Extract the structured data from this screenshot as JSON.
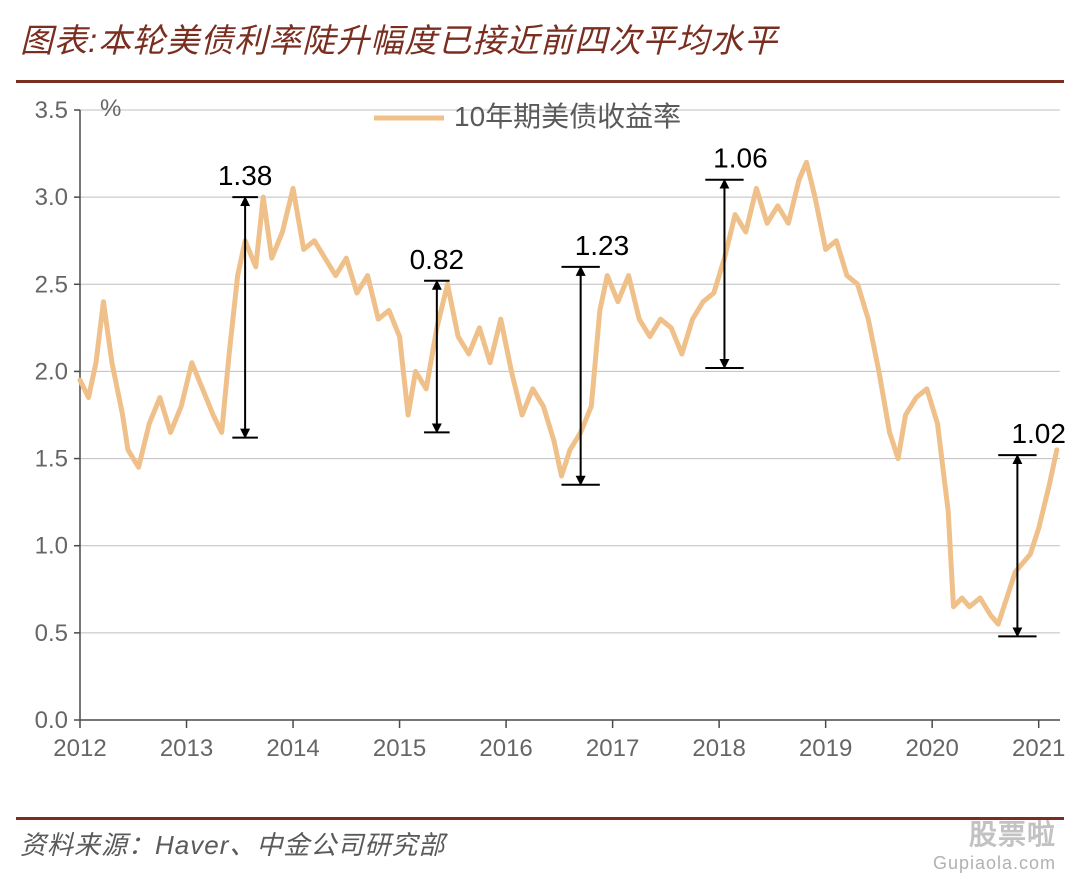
{
  "title": "图表:本轮美债利率陡升幅度已接近前四次平均水平",
  "source": "资料来源：Haver、中金公司研究部",
  "watermark": {
    "line1": "股票啦",
    "line2": "Gupiaola.com"
  },
  "chart": {
    "type": "line",
    "legend_label": "10年期美债收益率",
    "y_unit": "%",
    "bg_color": "#ffffff",
    "grid_color": "#bfbfbf",
    "axis_color": "#4a4a4a",
    "axis_text_color": "#666666",
    "line_color": "#efc08a",
    "line_width": 5,
    "tick_font_size": 24,
    "legend_font_size": 28,
    "annotation_font_size": 28,
    "xlim": [
      2012,
      2021.2
    ],
    "ylim": [
      0,
      3.5
    ],
    "ytick_step": 0.5,
    "xticks": [
      2012,
      2013,
      2014,
      2015,
      2016,
      2017,
      2018,
      2019,
      2020,
      2021
    ],
    "series": [
      {
        "x": 2012.0,
        "y": 1.95
      },
      {
        "x": 2012.08,
        "y": 1.85
      },
      {
        "x": 2012.15,
        "y": 2.05
      },
      {
        "x": 2012.22,
        "y": 2.4
      },
      {
        "x": 2012.3,
        "y": 2.05
      },
      {
        "x": 2012.4,
        "y": 1.75
      },
      {
        "x": 2012.45,
        "y": 1.55
      },
      {
        "x": 2012.55,
        "y": 1.45
      },
      {
        "x": 2012.65,
        "y": 1.7
      },
      {
        "x": 2012.75,
        "y": 1.85
      },
      {
        "x": 2012.85,
        "y": 1.65
      },
      {
        "x": 2012.95,
        "y": 1.8
      },
      {
        "x": 2013.05,
        "y": 2.05
      },
      {
        "x": 2013.15,
        "y": 1.9
      },
      {
        "x": 2013.25,
        "y": 1.75
      },
      {
        "x": 2013.33,
        "y": 1.65
      },
      {
        "x": 2013.4,
        "y": 2.1
      },
      {
        "x": 2013.48,
        "y": 2.55
      },
      {
        "x": 2013.55,
        "y": 2.75
      },
      {
        "x": 2013.65,
        "y": 2.6
      },
      {
        "x": 2013.72,
        "y": 3.0
      },
      {
        "x": 2013.8,
        "y": 2.65
      },
      {
        "x": 2013.9,
        "y": 2.8
      },
      {
        "x": 2014.0,
        "y": 3.05
      },
      {
        "x": 2014.1,
        "y": 2.7
      },
      {
        "x": 2014.2,
        "y": 2.75
      },
      {
        "x": 2014.3,
        "y": 2.65
      },
      {
        "x": 2014.4,
        "y": 2.55
      },
      {
        "x": 2014.5,
        "y": 2.65
      },
      {
        "x": 2014.6,
        "y": 2.45
      },
      {
        "x": 2014.7,
        "y": 2.55
      },
      {
        "x": 2014.8,
        "y": 2.3
      },
      {
        "x": 2014.9,
        "y": 2.35
      },
      {
        "x": 2015.0,
        "y": 2.2
      },
      {
        "x": 2015.08,
        "y": 1.75
      },
      {
        "x": 2015.15,
        "y": 2.0
      },
      {
        "x": 2015.25,
        "y": 1.9
      },
      {
        "x": 2015.35,
        "y": 2.25
      },
      {
        "x": 2015.45,
        "y": 2.5
      },
      {
        "x": 2015.55,
        "y": 2.2
      },
      {
        "x": 2015.65,
        "y": 2.1
      },
      {
        "x": 2015.75,
        "y": 2.25
      },
      {
        "x": 2015.85,
        "y": 2.05
      },
      {
        "x": 2015.95,
        "y": 2.3
      },
      {
        "x": 2016.05,
        "y": 2.0
      },
      {
        "x": 2016.15,
        "y": 1.75
      },
      {
        "x": 2016.25,
        "y": 1.9
      },
      {
        "x": 2016.35,
        "y": 1.8
      },
      {
        "x": 2016.45,
        "y": 1.6
      },
      {
        "x": 2016.52,
        "y": 1.4
      },
      {
        "x": 2016.6,
        "y": 1.55
      },
      {
        "x": 2016.7,
        "y": 1.65
      },
      {
        "x": 2016.8,
        "y": 1.8
      },
      {
        "x": 2016.88,
        "y": 2.35
      },
      {
        "x": 2016.95,
        "y": 2.55
      },
      {
        "x": 2017.05,
        "y": 2.4
      },
      {
        "x": 2017.15,
        "y": 2.55
      },
      {
        "x": 2017.25,
        "y": 2.3
      },
      {
        "x": 2017.35,
        "y": 2.2
      },
      {
        "x": 2017.45,
        "y": 2.3
      },
      {
        "x": 2017.55,
        "y": 2.25
      },
      {
        "x": 2017.65,
        "y": 2.1
      },
      {
        "x": 2017.75,
        "y": 2.3
      },
      {
        "x": 2017.85,
        "y": 2.4
      },
      {
        "x": 2017.95,
        "y": 2.45
      },
      {
        "x": 2018.05,
        "y": 2.65
      },
      {
        "x": 2018.15,
        "y": 2.9
      },
      {
        "x": 2018.25,
        "y": 2.8
      },
      {
        "x": 2018.35,
        "y": 3.05
      },
      {
        "x": 2018.45,
        "y": 2.85
      },
      {
        "x": 2018.55,
        "y": 2.95
      },
      {
        "x": 2018.65,
        "y": 2.85
      },
      {
        "x": 2018.75,
        "y": 3.1
      },
      {
        "x": 2018.82,
        "y": 3.2
      },
      {
        "x": 2018.9,
        "y": 3.0
      },
      {
        "x": 2019.0,
        "y": 2.7
      },
      {
        "x": 2019.1,
        "y": 2.75
      },
      {
        "x": 2019.2,
        "y": 2.55
      },
      {
        "x": 2019.3,
        "y": 2.5
      },
      {
        "x": 2019.4,
        "y": 2.3
      },
      {
        "x": 2019.5,
        "y": 2.0
      },
      {
        "x": 2019.6,
        "y": 1.65
      },
      {
        "x": 2019.68,
        "y": 1.5
      },
      {
        "x": 2019.75,
        "y": 1.75
      },
      {
        "x": 2019.85,
        "y": 1.85
      },
      {
        "x": 2019.95,
        "y": 1.9
      },
      {
        "x": 2020.05,
        "y": 1.7
      },
      {
        "x": 2020.15,
        "y": 1.2
      },
      {
        "x": 2020.2,
        "y": 0.65
      },
      {
        "x": 2020.28,
        "y": 0.7
      },
      {
        "x": 2020.35,
        "y": 0.65
      },
      {
        "x": 2020.45,
        "y": 0.7
      },
      {
        "x": 2020.55,
        "y": 0.6
      },
      {
        "x": 2020.62,
        "y": 0.55
      },
      {
        "x": 2020.7,
        "y": 0.7
      },
      {
        "x": 2020.78,
        "y": 0.85
      },
      {
        "x": 2020.85,
        "y": 0.9
      },
      {
        "x": 2020.92,
        "y": 0.95
      },
      {
        "x": 2021.0,
        "y": 1.1
      },
      {
        "x": 2021.1,
        "y": 1.35
      },
      {
        "x": 2021.17,
        "y": 1.55
      }
    ],
    "annotations": [
      {
        "label": "1.38",
        "x_label": 2013.55,
        "x_bar": 2013.55,
        "y_low": 1.62,
        "y_high": 3.0,
        "tick_half": 0.12
      },
      {
        "label": "0.82",
        "x_label": 2015.35,
        "x_bar": 2015.35,
        "y_low": 1.65,
        "y_high": 2.52,
        "tick_half": 0.12
      },
      {
        "label": "1.23",
        "x_label": 2016.9,
        "x_bar": 2016.7,
        "y_low": 1.35,
        "y_high": 2.6,
        "tick_half": 0.18
      },
      {
        "label": "1.06",
        "x_label": 2018.2,
        "x_bar": 2018.05,
        "y_low": 2.02,
        "y_high": 3.1,
        "tick_half": 0.18
      },
      {
        "label": "1.02",
        "x_label": 2021.0,
        "x_bar": 2020.8,
        "y_low": 0.48,
        "y_high": 1.52,
        "tick_half": 0.18
      }
    ]
  }
}
